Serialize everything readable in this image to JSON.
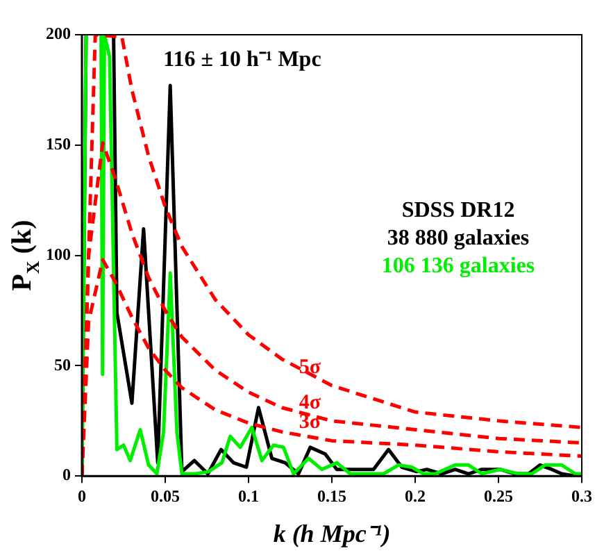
{
  "chart_data": {
    "type": "line",
    "xlabel": "k (h Mpc⁻¹)",
    "ylabel": "P$_{X}$ (k)",
    "xlim": [
      0,
      0.3
    ],
    "ylim": [
      0,
      200
    ],
    "xticks": [
      0,
      0.05,
      0.1,
      0.15,
      0.2,
      0.25,
      0.3
    ],
    "yticks": [
      0,
      50,
      100,
      150,
      200
    ],
    "grid": false,
    "legend": false,
    "marker": "none",
    "annotations": [
      {
        "text": "116 ± 10 h⁻¹ Mpc",
        "x": 0.053,
        "y": 177
      },
      "SDSS DR12"
    ],
    "series": [
      {
        "name": "5σ",
        "color": "#ff0000",
        "line_style": "dashed",
        "x": [
          0,
          0.008,
          0.024,
          0.03,
          0.04,
          0.05,
          0.06,
          0.08,
          0.1,
          0.12,
          0.15,
          0.2,
          0.25,
          0.3
        ],
        "values": [
          0,
          200,
          199,
          175,
          145,
          122,
          104,
          80,
          64,
          53,
          41,
          29,
          25,
          22
        ]
      },
      {
        "name": "4σ",
        "color": "#ff0000",
        "line_style": "dashed",
        "x": [
          0,
          0.004,
          0.0125,
          0.02,
          0.03,
          0.04,
          0.05,
          0.06,
          0.08,
          0.1,
          0.12,
          0.15,
          0.2,
          0.25,
          0.3
        ],
        "values": [
          0,
          100,
          151,
          135,
          110,
          90,
          75,
          63,
          48,
          38,
          31,
          25,
          21,
          17,
          15
        ]
      },
      {
        "name": "3σ",
        "color": "#ff0000",
        "line_style": "dashed",
        "x": [
          0,
          0.004,
          0.0125,
          0.02,
          0.03,
          0.04,
          0.05,
          0.06,
          0.08,
          0.1,
          0.12,
          0.15,
          0.2,
          0.25,
          0.3
        ],
        "values": [
          0,
          70,
          98,
          88,
          72,
          58,
          48,
          40,
          30,
          24,
          20,
          16,
          14,
          11,
          9
        ]
      },
      {
        "name": "106 136 galaxies",
        "color": "#00ee00",
        "line_style": "solid",
        "x": [
          0,
          0.0025,
          0.007,
          0.0115,
          0.0124,
          0.0135,
          0.0166,
          0.021,
          0.025,
          0.029,
          0.035,
          0.04,
          0.045,
          0.049,
          0.053,
          0.057,
          0.06,
          0.068,
          0.076,
          0.084,
          0.089,
          0.095,
          0.102,
          0.108,
          0.115,
          0.121,
          0.127,
          0.136,
          0.144,
          0.153,
          0.161,
          0.171,
          0.181,
          0.19,
          0.198,
          0.205,
          0.212,
          0.224,
          0.232,
          0.24,
          0.251,
          0.262,
          0.27,
          0.278,
          0.288,
          0.296,
          0.3
        ],
        "values": [
          0,
          200,
          null,
          200,
          46,
          200,
          190,
          12,
          14,
          7,
          21,
          5,
          1,
          20,
          92,
          20,
          1,
          1,
          2,
          6,
          18,
          13,
          22,
          7,
          14,
          13,
          1,
          8,
          3,
          6,
          1,
          1,
          1,
          5,
          4,
          1,
          1,
          5,
          5,
          1,
          3,
          1,
          1,
          5,
          5,
          1,
          1
        ]
      },
      {
        "name": "38 880 galaxies",
        "color": "#000000",
        "line_style": "solid",
        "x": [
          0,
          0.0025,
          0.01,
          0.019,
          0.021,
          0.03,
          0.037,
          0.0455,
          0.053,
          0.06,
          0.0675,
          0.0756,
          0.0835,
          0.091,
          0.0987,
          0.106,
          0.114,
          0.122,
          0.13,
          0.137,
          0.146,
          0.153,
          0.158,
          0.175,
          0.184,
          0.192,
          0.201,
          0.207,
          0.216,
          0.224,
          0.232,
          0.24,
          0.251,
          0.26,
          0.268,
          0.275,
          0.282,
          0.288,
          0.296,
          0.3
        ],
        "values": [
          0,
          200,
          null,
          200,
          74,
          33,
          112,
          6,
          177,
          2,
          7,
          1,
          12,
          6,
          4,
          31,
          8,
          6,
          1,
          13,
          10,
          3,
          3,
          3,
          12,
          4,
          2,
          3,
          1,
          3,
          1,
          3,
          3,
          1,
          1,
          5,
          3,
          1,
          0,
          0
        ]
      }
    ]
  }
}
